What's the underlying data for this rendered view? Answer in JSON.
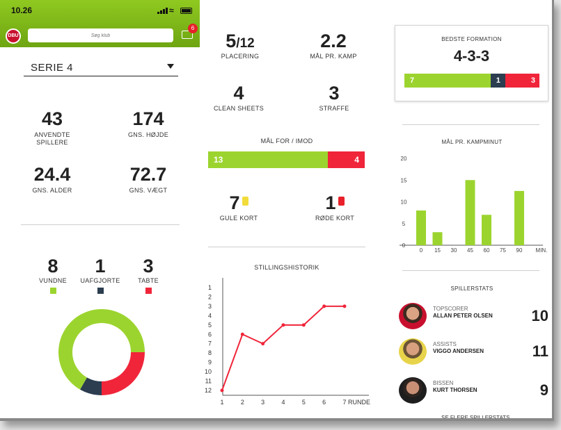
{
  "status": {
    "time": "10.26"
  },
  "header": {
    "search_placeholder": "Søg klub",
    "notifications": "6",
    "logo_text": "DBU"
  },
  "team": {
    "serie": "SERIE 4",
    "players": {
      "value": "43",
      "label": "ANVENDTE SPILLERE"
    },
    "height": {
      "value": "174",
      "label": "GNS. HØJDE"
    },
    "age": {
      "value": "24.4",
      "label": "GNS. ALDER"
    },
    "weight": {
      "value": "72.7",
      "label": "GNS. VÆGT"
    }
  },
  "record": {
    "won": {
      "value": "8",
      "label": "VUNDNE"
    },
    "draw": {
      "value": "1",
      "label": "UAFGJORTE"
    },
    "lost": {
      "value": "3",
      "label": "TABTE"
    }
  },
  "colors": {
    "green": "#9cd42f",
    "navy": "#2c3e50",
    "red": "#f0253a"
  },
  "summary": {
    "placement": {
      "value": "5",
      "of": "/12",
      "label": "PLACERING"
    },
    "goals_per_game": {
      "value": "2.2",
      "label": "MÅL PR. KAMP"
    },
    "clean_sheets": {
      "value": "4",
      "label": "CLEAN SHEETS"
    },
    "penalties": {
      "value": "3",
      "label": "STRAFFE"
    }
  },
  "goals_for_against": {
    "title": "MÅL FOR / IMOD",
    "for": 13,
    "against": 4,
    "for_label": "13",
    "against_label": "4"
  },
  "cards": {
    "yellow": {
      "value": "7",
      "label": "GULE KORT"
    },
    "red": {
      "value": "1",
      "label": "RØDE KORT"
    }
  },
  "formation": {
    "title": "BEDSTE FORMATION",
    "value": "4-3-3",
    "won": 7,
    "draw": 1,
    "lost": 3,
    "won_label": "7",
    "draw_label": "1",
    "lost_label": "3"
  },
  "history_chart": {
    "type": "line",
    "title": "STILLINGSHISTORIK",
    "xlabel": "RUNDE",
    "x": [
      1,
      2,
      3,
      4,
      5,
      6,
      7
    ],
    "y": [
      12,
      6,
      7,
      5,
      5,
      3,
      3
    ],
    "y_ticks": [
      1,
      2,
      3,
      4,
      5,
      6,
      7,
      8,
      9,
      10,
      11,
      12
    ],
    "ylim": [
      1,
      12
    ],
    "inverted": true
  },
  "minute_chart": {
    "type": "bar",
    "title": "MÅL PR. KAMPMINUT",
    "xlabel": "MIN.",
    "categories": [
      "0",
      "15",
      "30",
      "45",
      "60",
      "75",
      "90"
    ],
    "x_ticks": [
      "0",
      "15",
      "30",
      "45",
      "60",
      "75",
      "90"
    ],
    "x": [
      0,
      15,
      45,
      60,
      90
    ],
    "values": [
      8,
      3,
      15,
      7,
      12.5
    ],
    "y_ticks": [
      "0",
      "5",
      "10",
      "15",
      "20"
    ],
    "ylim": [
      0,
      20
    ]
  },
  "player_stats": {
    "title": "SPILLERSTATS",
    "players": [
      {
        "role": "TOPSCORER",
        "name": "ALLAN PETER OLSEN",
        "value": "10"
      },
      {
        "role": "ASSISTS",
        "name": "VIGGO ANDERSEN",
        "value": "11"
      },
      {
        "role": "BISSEN",
        "name": "KURT THORSEN",
        "value": "9"
      }
    ],
    "more_link": "SE FLERE SPILLERSTATS"
  }
}
